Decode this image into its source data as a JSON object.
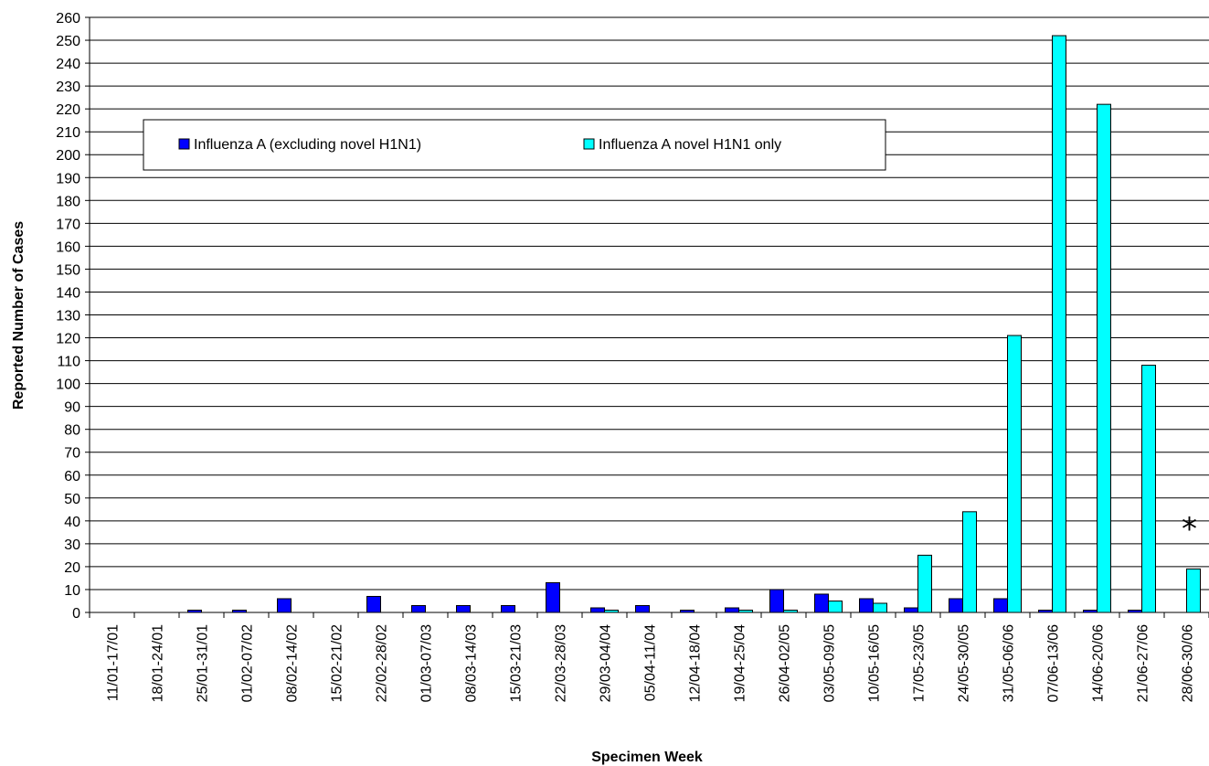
{
  "chart_data": {
    "type": "bar",
    "title": "",
    "xlabel": "Specimen Week",
    "ylabel": "Reported Number of Cases",
    "ylim": [
      0,
      260
    ],
    "ytick_step": 10,
    "grid": "horizontal",
    "legend_position": "top-left",
    "categories": [
      "11/01-17/01",
      "18/01-24/01",
      "25/01-31/01",
      "01/02-07/02",
      "08/02-14/02",
      "15/02-21/02",
      "22/02-28/02",
      "01/03-07/03",
      "08/03-14/03",
      "15/03-21/03",
      "22/03-28/03",
      "29/03-04/04",
      "05/04-11/04",
      "12/04-18/04",
      "19/04-25/04",
      "26/04-02/05",
      "03/05-09/05",
      "10/05-16/05",
      "17/05-23/05",
      "24/05-30/05",
      "31/05-06/06",
      "07/06-13/06",
      "14/06-20/06",
      "21/06-27/06",
      "28/06-30/06"
    ],
    "series": [
      {
        "name": "Influenza A (excluding novel H1N1)",
        "color": "#0000ff",
        "values": [
          0,
          0,
          1,
          1,
          6,
          0,
          7,
          3,
          3,
          3,
          13,
          2,
          3,
          1,
          2,
          10,
          8,
          6,
          2,
          6,
          6,
          1,
          1,
          1,
          0
        ]
      },
      {
        "name": "Influenza A novel H1N1 only",
        "color": "#00ffff",
        "values": [
          0,
          0,
          0,
          0,
          0,
          0,
          0,
          0,
          0,
          0,
          0,
          1,
          0,
          0,
          1,
          1,
          5,
          4,
          25,
          44,
          121,
          252,
          222,
          108,
          19
        ]
      }
    ],
    "annotations": [
      {
        "text": "*",
        "category": "28/06-30/06"
      }
    ]
  }
}
